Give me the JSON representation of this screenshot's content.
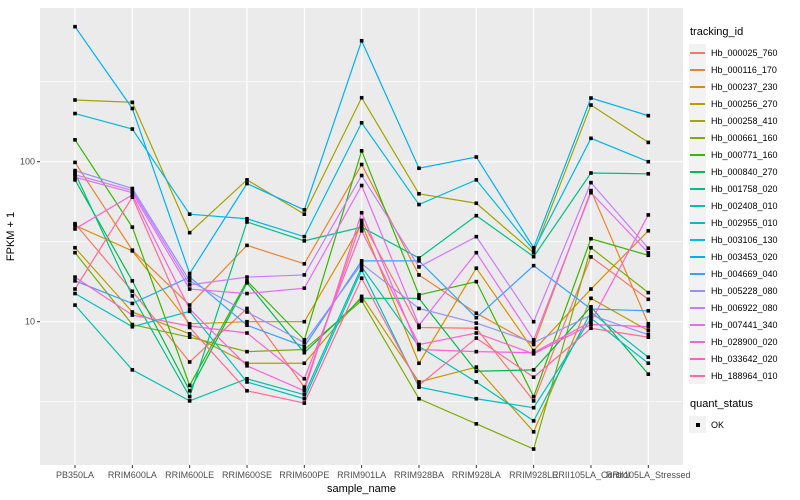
{
  "figure": {
    "xlabel": "sample_name",
    "ylabel": "FPKM + 1"
  },
  "legend": {
    "tracking_title": "tracking_id",
    "quant_title": "quant_status",
    "quant_ok": "OK"
  },
  "chart_data": {
    "type": "line",
    "title": "",
    "xlabel": "sample_name",
    "ylabel": "FPKM + 1",
    "yscale": "log10",
    "ytick_labels": [
      "10",
      "100"
    ],
    "yticks": [
      10,
      100
    ],
    "minor_gridlines": [
      3.1623,
      31.623,
      316.23
    ],
    "ylim": [
      1.3,
      900
    ],
    "grid": true,
    "legend_position": "right",
    "legend_title": "tracking_id",
    "panel_bg": "#EBEBEB",
    "grid_color": "#FFFFFF",
    "point_color": "#000000",
    "point_shape": "square",
    "tick_label_color": "#4D4D4D",
    "quant_status": {
      "title": "quant_status",
      "entries": [
        "OK"
      ]
    },
    "categories": [
      "PB350LA",
      "RRIM600LA",
      "RRIM600LE",
      "RRIM600SE",
      "RRIM600PE",
      "RRIM901LA",
      "RRIM928BA",
      "RRIM928LA",
      "RRIM928LE",
      "RRII105LA_Control",
      "RRII105LA_Stressed"
    ],
    "series": [
      {
        "name": "Hb_000025_760",
        "color": "#F8766D",
        "values": [
          41,
          15.5,
          5.6,
          12.1,
          3.9,
          43,
          9.2,
          9.1,
          3.2,
          25.4,
          13.8
        ]
      },
      {
        "name": "Hb_000116_170",
        "color": "#EA8331",
        "values": [
          99,
          28,
          12.7,
          30,
          23,
          96,
          19.6,
          11.3,
          7.2,
          66,
          9.7
        ]
      },
      {
        "name": "Hb_000237_230",
        "color": "#D89000",
        "values": [
          40,
          27.7,
          9.7,
          10,
          10,
          41,
          5.5,
          21.6,
          6.6,
          16,
          37
        ]
      },
      {
        "name": "Hb_000256_270",
        "color": "#C09B00",
        "values": [
          29,
          11.5,
          8.4,
          5.5,
          5.5,
          14.4,
          4.2,
          5.2,
          2.05,
          14,
          8.8
        ]
      },
      {
        "name": "Hb_000258_410",
        "color": "#A3A500",
        "values": [
          243,
          235,
          36,
          77,
          47,
          251,
          63,
          55,
          27,
          226,
          132
        ]
      },
      {
        "name": "Hb_000661_160",
        "color": "#7CAE00",
        "values": [
          27,
          9.6,
          8.0,
          6.5,
          6.7,
          13.5,
          3.3,
          2.3,
          1.6,
          29,
          15.2
        ]
      },
      {
        "name": "Hb_000771_160",
        "color": "#39B600",
        "values": [
          137,
          39,
          4.0,
          18,
          7.7,
          117,
          14.7,
          17.8,
          3.4,
          33,
          26
        ]
      },
      {
        "name": "Hb_000840_270",
        "color": "#00BB4E",
        "values": [
          77,
          18,
          3.7,
          17.5,
          6.4,
          14,
          14,
          4.9,
          5.0,
          12.4,
          4.7
        ]
      },
      {
        "name": "Hb_001758_020",
        "color": "#00C087",
        "values": [
          85,
          14.5,
          3.4,
          42,
          32,
          39,
          25,
          46,
          25.5,
          85,
          84
        ]
      },
      {
        "name": "Hb_002408_010",
        "color": "#00C1AB",
        "values": [
          12.7,
          5.0,
          3.2,
          4.4,
          3.5,
          22,
          7.0,
          4.2,
          2.4,
          11.5,
          6.0
        ]
      },
      {
        "name": "Hb_002955_010",
        "color": "#00BFC4",
        "values": [
          15,
          9.3,
          11.6,
          4.2,
          3.3,
          21,
          3.9,
          3.3,
          2.9,
          10.5,
          5.5
        ]
      },
      {
        "name": "Hb_003106_130",
        "color": "#00BAE0",
        "values": [
          200,
          160,
          47,
          44,
          34,
          175,
          54,
          77,
          28,
          140,
          100
        ]
      },
      {
        "name": "Hb_003453_020",
        "color": "#00B0F6",
        "values": [
          698,
          215,
          20,
          73,
          50,
          570,
          91,
          107,
          29,
          250,
          194
        ]
      },
      {
        "name": "Hb_004669_040",
        "color": "#35A2FF",
        "values": [
          18,
          13,
          19,
          9.5,
          7.0,
          24,
          24,
          10.6,
          22.4,
          12,
          11.7
        ]
      },
      {
        "name": "Hb_005228_080",
        "color": "#9590FF",
        "values": [
          88,
          68,
          18,
          11.5,
          7.4,
          23,
          12.1,
          9.8,
          7.4,
          11,
          8.3
        ]
      },
      {
        "name": "Hb_006922_080",
        "color": "#C77CFF",
        "values": [
          83,
          66,
          17,
          19,
          19.6,
          82,
          22,
          34,
          10,
          74,
          28.8
        ]
      },
      {
        "name": "Hb_007441_340",
        "color": "#E76BF3",
        "values": [
          80,
          64,
          16,
          15,
          16.2,
          71,
          9.5,
          27,
          7.7,
          64,
          27
        ]
      },
      {
        "name": "Hb_028900_020",
        "color": "#FA62DB",
        "values": [
          38,
          62,
          12,
          5.3,
          3.7,
          48,
          6.7,
          6.5,
          6.4,
          10,
          46.5
        ]
      },
      {
        "name": "Hb_033642_020",
        "color": "#FF61CC",
        "values": [
          19,
          11,
          9.4,
          8.5,
          4.4,
          37,
          7.2,
          8.5,
          6.3,
          9.6,
          9.3
        ]
      },
      {
        "name": "Hb_188964_010",
        "color": "#FF6A98",
        "values": [
          16,
          60,
          9.2,
          3.7,
          3.1,
          18.7,
          4.0,
          7.9,
          4.5,
          9.1,
          8.0
        ]
      }
    ]
  }
}
